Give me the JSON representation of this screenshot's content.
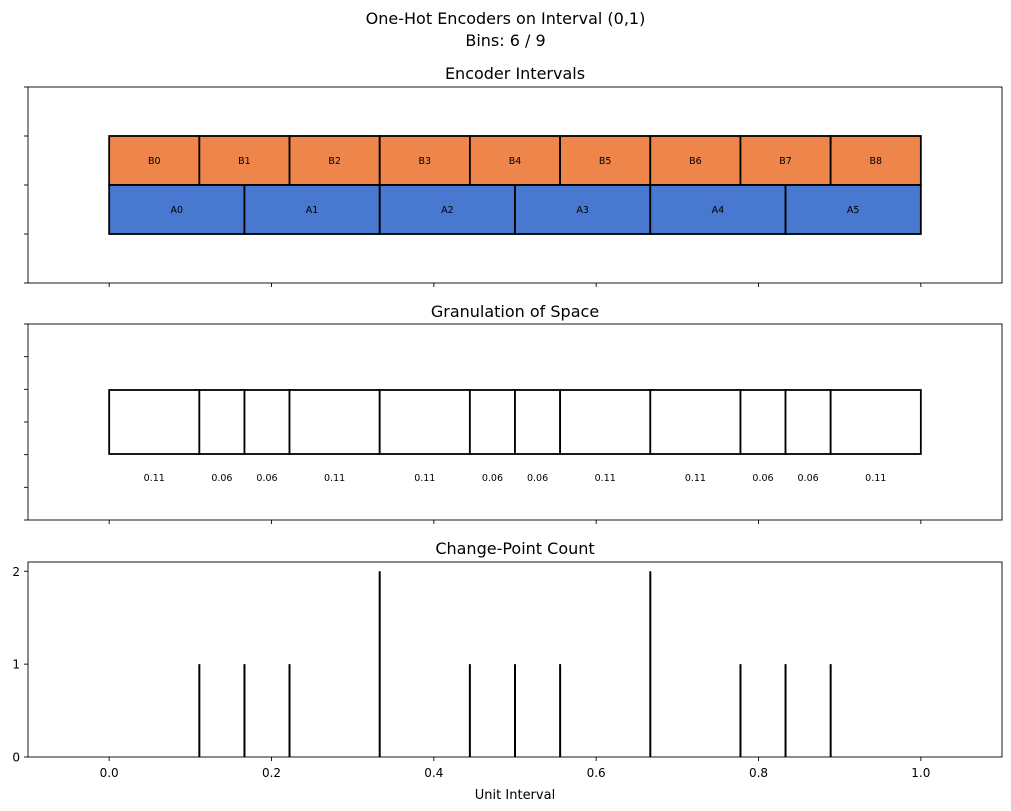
{
  "figure": {
    "title_line1": "One-Hot Encoders on Interval (0,1)",
    "title_line2": "Bins: 6 / 9"
  },
  "chart_data": [
    {
      "type": "bar",
      "title": "Encoder Intervals",
      "xlim": [
        -0.1,
        1.1
      ],
      "x_ticks": [
        0.0,
        0.2,
        0.4,
        0.6,
        0.8,
        1.0
      ],
      "show_tick_labels": false,
      "colors": {
        "A": "#4878cf",
        "B": "#ee854a",
        "edge": "#000000"
      },
      "encoders": [
        {
          "name": "B",
          "bins": 9,
          "labels": [
            "B0",
            "B1",
            "B2",
            "B3",
            "B4",
            "B5",
            "B6",
            "B7",
            "B8"
          ]
        },
        {
          "name": "A",
          "bins": 6,
          "labels": [
            "A0",
            "A1",
            "A2",
            "A3",
            "A4",
            "A5"
          ]
        }
      ]
    },
    {
      "type": "bar",
      "title": "Granulation of Space",
      "xlim": [
        -0.1,
        1.1
      ],
      "x_ticks": [
        0.0,
        0.2,
        0.4,
        0.6,
        0.8,
        1.0
      ],
      "show_tick_labels": false,
      "boundaries": [
        0.0,
        0.1111,
        0.1667,
        0.2222,
        0.3333,
        0.4444,
        0.5,
        0.5556,
        0.6667,
        0.7778,
        0.8333,
        0.8889,
        1.0
      ],
      "width_labels": [
        "0.11",
        "0.06",
        "0.06",
        "0.11",
        "0.11",
        "0.06",
        "0.06",
        "0.11",
        "0.11",
        "0.06",
        "0.06",
        "0.11"
      ]
    },
    {
      "type": "bar",
      "title": "Change-Point Count",
      "xlabel": "Unit Interval",
      "xlim": [
        -0.1,
        1.1
      ],
      "ylim": [
        0,
        2.1
      ],
      "x_ticks": [
        0.0,
        0.2,
        0.4,
        0.6,
        0.8,
        1.0
      ],
      "x_tick_labels": [
        "0.0",
        "0.2",
        "0.4",
        "0.6",
        "0.8",
        "1.0"
      ],
      "y_ticks": [
        0,
        1,
        2
      ],
      "y_tick_labels": [
        "0",
        "1",
        "2"
      ],
      "x": [
        0.1111,
        0.1667,
        0.2222,
        0.3333,
        0.4444,
        0.5,
        0.5556,
        0.6667,
        0.7778,
        0.8333,
        0.8889
      ],
      "values": [
        1,
        1,
        1,
        2,
        1,
        1,
        1,
        2,
        1,
        1,
        1
      ]
    }
  ]
}
